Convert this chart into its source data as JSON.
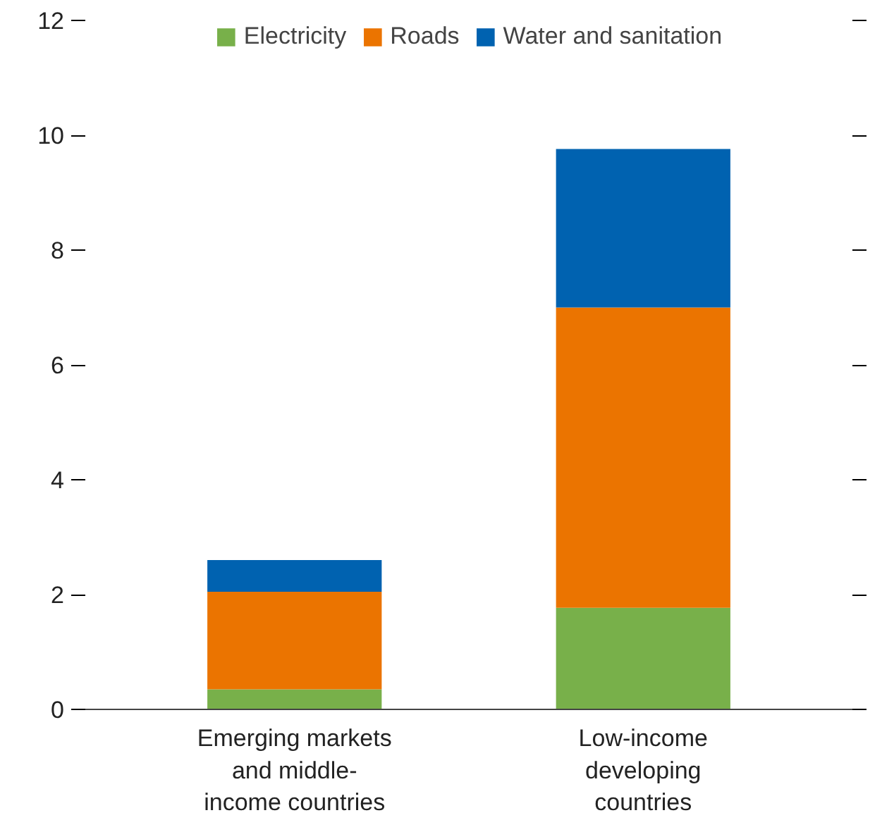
{
  "chart_data": {
    "type": "bar",
    "stacked": true,
    "categories": [
      "Emerging markets\nand middle-\nincome countries",
      "Low-income\ndeveloping\ncountries"
    ],
    "series": [
      {
        "name": "Electricity",
        "color": "#78b04a",
        "values": [
          0.35,
          1.77
        ]
      },
      {
        "name": "Roads",
        "color": "#eb7400",
        "values": [
          1.7,
          5.23
        ]
      },
      {
        "name": "Water and sanitation",
        "color": "#0062b0",
        "values": [
          0.55,
          2.76
        ]
      }
    ],
    "ylim": [
      0,
      12
    ],
    "yticks": [
      0,
      2,
      4,
      6,
      8,
      10,
      12
    ],
    "grid": false,
    "legend": "top"
  }
}
